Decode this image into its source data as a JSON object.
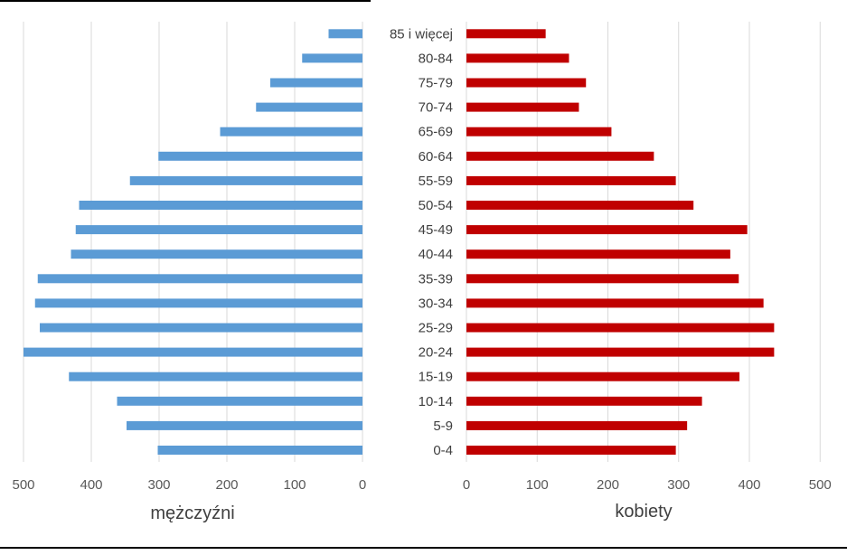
{
  "chart_data": [
    {
      "type": "bar",
      "orientation": "horizontal",
      "direction": "reversed",
      "xlabel": "mężczyźni",
      "xlim": [
        0,
        500
      ],
      "xticks": [
        500,
        400,
        300,
        200,
        100,
        0
      ],
      "grid": true,
      "color": "#5b9bd5",
      "values": [
        302,
        348,
        362,
        433,
        500,
        476,
        483,
        479,
        430,
        423,
        418,
        343,
        301,
        210,
        157,
        136,
        89,
        50
      ]
    },
    {
      "type": "bar",
      "orientation": "horizontal",
      "xlabel": "kobiety",
      "xlim": [
        0,
        500
      ],
      "xticks": [
        0,
        100,
        200,
        300,
        400,
        500
      ],
      "grid": true,
      "color": "#c00000",
      "values": [
        296,
        312,
        333,
        386,
        435,
        435,
        420,
        385,
        373,
        397,
        321,
        296,
        265,
        205,
        159,
        169,
        145,
        112
      ]
    }
  ],
  "categories": [
    "0-4",
    "5-9",
    "10-14",
    "15-19",
    "20-24",
    "25-29",
    "30-34",
    "35-39",
    "40-44",
    "45-49",
    "50-54",
    "55-59",
    "60-64",
    "65-69",
    "70-74",
    "75-79",
    "80-84",
    "85 i więcej"
  ]
}
